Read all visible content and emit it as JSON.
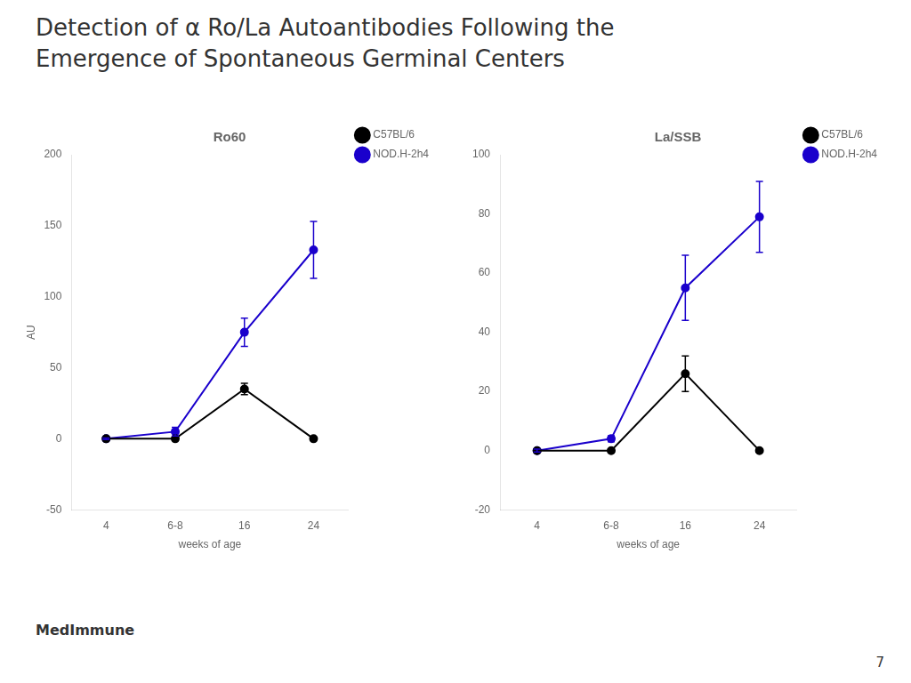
{
  "title": [
    "Detection of α Ro/La Autoantibodies Following the",
    "Emergence of Spontaneous Germinal Centers"
  ],
  "annotations": [
    "MedImmune",
    "7"
  ],
  "chart_data": [
    {
      "type": "line",
      "title": "Ro60",
      "x_label": "weeks of age",
      "y_label": "AU",
      "categories": [
        "4",
        "6-8",
        "16",
        "24"
      ],
      "series": [
        {
          "name": "C57BL/6",
          "color": "#000000",
          "marker": "circle",
          "values": [
            0,
            0,
            35,
            0
          ],
          "errors": [
            0.5,
            0.5,
            4,
            0.5
          ]
        },
        {
          "name": "NOD.H-2h4",
          "color": "#1A00CC",
          "marker": "circle",
          "values": [
            0,
            5,
            75,
            133
          ],
          "errors": [
            0.5,
            3,
            10,
            20
          ]
        }
      ],
      "ylim": [
        -50,
        200
      ],
      "yticks": [
        -50,
        0,
        50,
        100,
        150,
        200
      ],
      "grid": false,
      "legend": "right"
    },
    {
      "type": "line",
      "title": "La/SSB",
      "x_label": "weeks of age",
      "categories": [
        "4",
        "6-8",
        "16",
        "24"
      ],
      "series": [
        {
          "name": "C57BL/6",
          "color": "#000000",
          "marker": "circle",
          "values": [
            0,
            0,
            26,
            0
          ],
          "errors": [
            0.5,
            0.5,
            6,
            0.5
          ]
        },
        {
          "name": "NOD.H-2h4",
          "color": "#1A00CC",
          "marker": "circle",
          "values": [
            0,
            4,
            55,
            79
          ],
          "errors": [
            0.5,
            1,
            11,
            12
          ]
        }
      ],
      "ylim": [
        -20,
        100
      ],
      "yticks": [
        -20,
        0,
        20,
        40,
        60,
        80,
        100
      ],
      "grid": false,
      "legend": "right"
    }
  ]
}
